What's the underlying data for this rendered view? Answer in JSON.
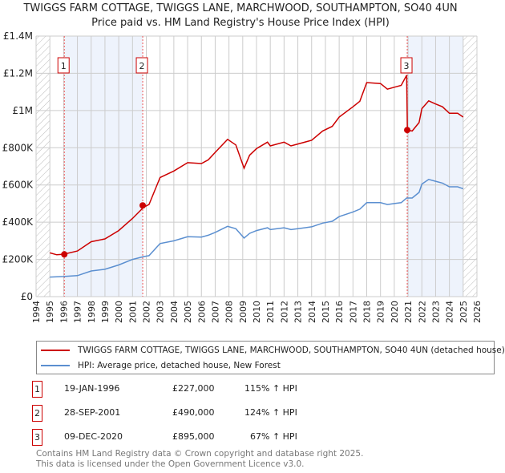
{
  "title": "TWIGGS FARM COTTAGE, TWIGGS LANE, MARCHWOOD, SOUTHAMPTON, SO40 4UN",
  "subtitle": "Price paid vs. HM Land Registry's House Price Index (HPI)",
  "colors": {
    "property": "#cc0000",
    "hpi": "#5b8fd0",
    "shade": "#eef3fc"
  },
  "chart_data": {
    "type": "line",
    "xlim": [
      1994,
      2026
    ],
    "ylim": [
      0,
      1400000
    ],
    "x_ticks": [
      "1994",
      "1995",
      "1996",
      "1997",
      "1998",
      "1999",
      "2000",
      "2001",
      "2002",
      "2003",
      "2004",
      "2005",
      "2006",
      "2007",
      "2008",
      "2009",
      "2010",
      "2011",
      "2012",
      "2013",
      "2014",
      "2015",
      "2016",
      "2017",
      "2018",
      "2019",
      "2020",
      "2021",
      "2022",
      "2023",
      "2024",
      "2025",
      "2026"
    ],
    "y_ticks": [
      {
        "v": 0,
        "label": "£0"
      },
      {
        "v": 200000,
        "label": "£200K"
      },
      {
        "v": 400000,
        "label": "£400K"
      },
      {
        "v": 600000,
        "label": "£600K"
      },
      {
        "v": 800000,
        "label": "£800K"
      },
      {
        "v": 1000000,
        "label": "£1M"
      },
      {
        "v": 1200000,
        "label": "£1.2M"
      },
      {
        "v": 1400000,
        "label": "£1.4M"
      }
    ],
    "data_range": [
      1995,
      2025
    ],
    "shaded_periods": [
      [
        1996.05,
        2001.74
      ],
      [
        2020.94,
        2025
      ]
    ],
    "series": [
      {
        "name": "TWIGGS FARM COTTAGE, TWIGGS LANE, MARCHWOOD, SOUTHAMPTON, SO40 4UN (detached house)",
        "key": "property",
        "x": [
          1995,
          1995.5,
          1996,
          1997,
          1998,
          1999,
          2000,
          2001,
          2001.8,
          2002.2,
          2003,
          2004,
          2005,
          2006,
          2006.5,
          2007,
          2007.9,
          2008.5,
          2009.1,
          2009.5,
          2010,
          2010.8,
          2011,
          2012,
          2012.5,
          2013,
          2014,
          2014.8,
          2015.5,
          2016,
          2017,
          2017.5,
          2018,
          2019,
          2019.5,
          2020,
          2020.5,
          2020.9,
          2020.95,
          2021.3,
          2021.8,
          2022,
          2022.5,
          2023,
          2023.5,
          2024,
          2024.6,
          2025
        ],
        "y": [
          235000,
          225000,
          228000,
          245000,
          295000,
          310000,
          355000,
          420000,
          480000,
          495000,
          640000,
          675000,
          720000,
          715000,
          735000,
          775000,
          845000,
          815000,
          690000,
          760000,
          795000,
          830000,
          810000,
          830000,
          810000,
          820000,
          840000,
          890000,
          915000,
          965000,
          1020000,
          1050000,
          1150000,
          1145000,
          1115000,
          1125000,
          1135000,
          1190000,
          895000,
          890000,
          935000,
          1010000,
          1052000,
          1035000,
          1020000,
          985000,
          985000,
          965000
        ]
      },
      {
        "name": "HPI: Average price, detached house, New Forest",
        "key": "hpi",
        "x": [
          1995,
          1996,
          1997,
          1998,
          1999,
          2000,
          2001,
          2001.8,
          2002.2,
          2003,
          2004,
          2005,
          2006,
          2006.5,
          2007,
          2007.9,
          2008.5,
          2009.1,
          2009.5,
          2010,
          2010.8,
          2011,
          2012,
          2012.5,
          2013,
          2014,
          2014.8,
          2015.5,
          2016,
          2017,
          2017.5,
          2018,
          2019,
          2019.5,
          2020,
          2020.5,
          2020.9,
          2021.3,
          2021.8,
          2022,
          2022.5,
          2023,
          2023.5,
          2024,
          2024.6,
          2025
        ],
        "y": [
          105000,
          108000,
          113000,
          138000,
          147000,
          170000,
          200000,
          215000,
          220000,
          285000,
          300000,
          322000,
          320000,
          330000,
          345000,
          378000,
          365000,
          315000,
          340000,
          355000,
          370000,
          360000,
          370000,
          360000,
          365000,
          375000,
          395000,
          405000,
          430000,
          455000,
          470000,
          505000,
          505000,
          495000,
          500000,
          505000,
          530000,
          530000,
          560000,
          605000,
          630000,
          620000,
          610000,
          590000,
          590000,
          580000
        ]
      }
    ],
    "sales": [
      {
        "num": "1",
        "x": 1996.05,
        "y": 227000,
        "date": "19-JAN-1996",
        "price": "£227,000",
        "hpi": "115% ↑ HPI"
      },
      {
        "num": "2",
        "x": 2001.74,
        "y": 490000,
        "date": "28-SEP-2001",
        "price": "£490,000",
        "hpi": "124% ↑ HPI"
      },
      {
        "num": "3",
        "x": 2020.94,
        "y": 895000,
        "date": "09-DEC-2020",
        "price": "£895,000",
        "hpi": "67% ↑ HPI"
      }
    ],
    "legend_position": "below"
  },
  "legend": {
    "property": "TWIGGS FARM COTTAGE, TWIGGS LANE, MARCHWOOD, SOUTHAMPTON, SO40 4UN (detached house)",
    "hpi": "HPI: Average price, detached house, New Forest"
  },
  "footer": {
    "line1": "Contains HM Land Registry data © Crown copyright and database right 2025.",
    "line2": "This data is licensed under the Open Government Licence v3.0."
  }
}
